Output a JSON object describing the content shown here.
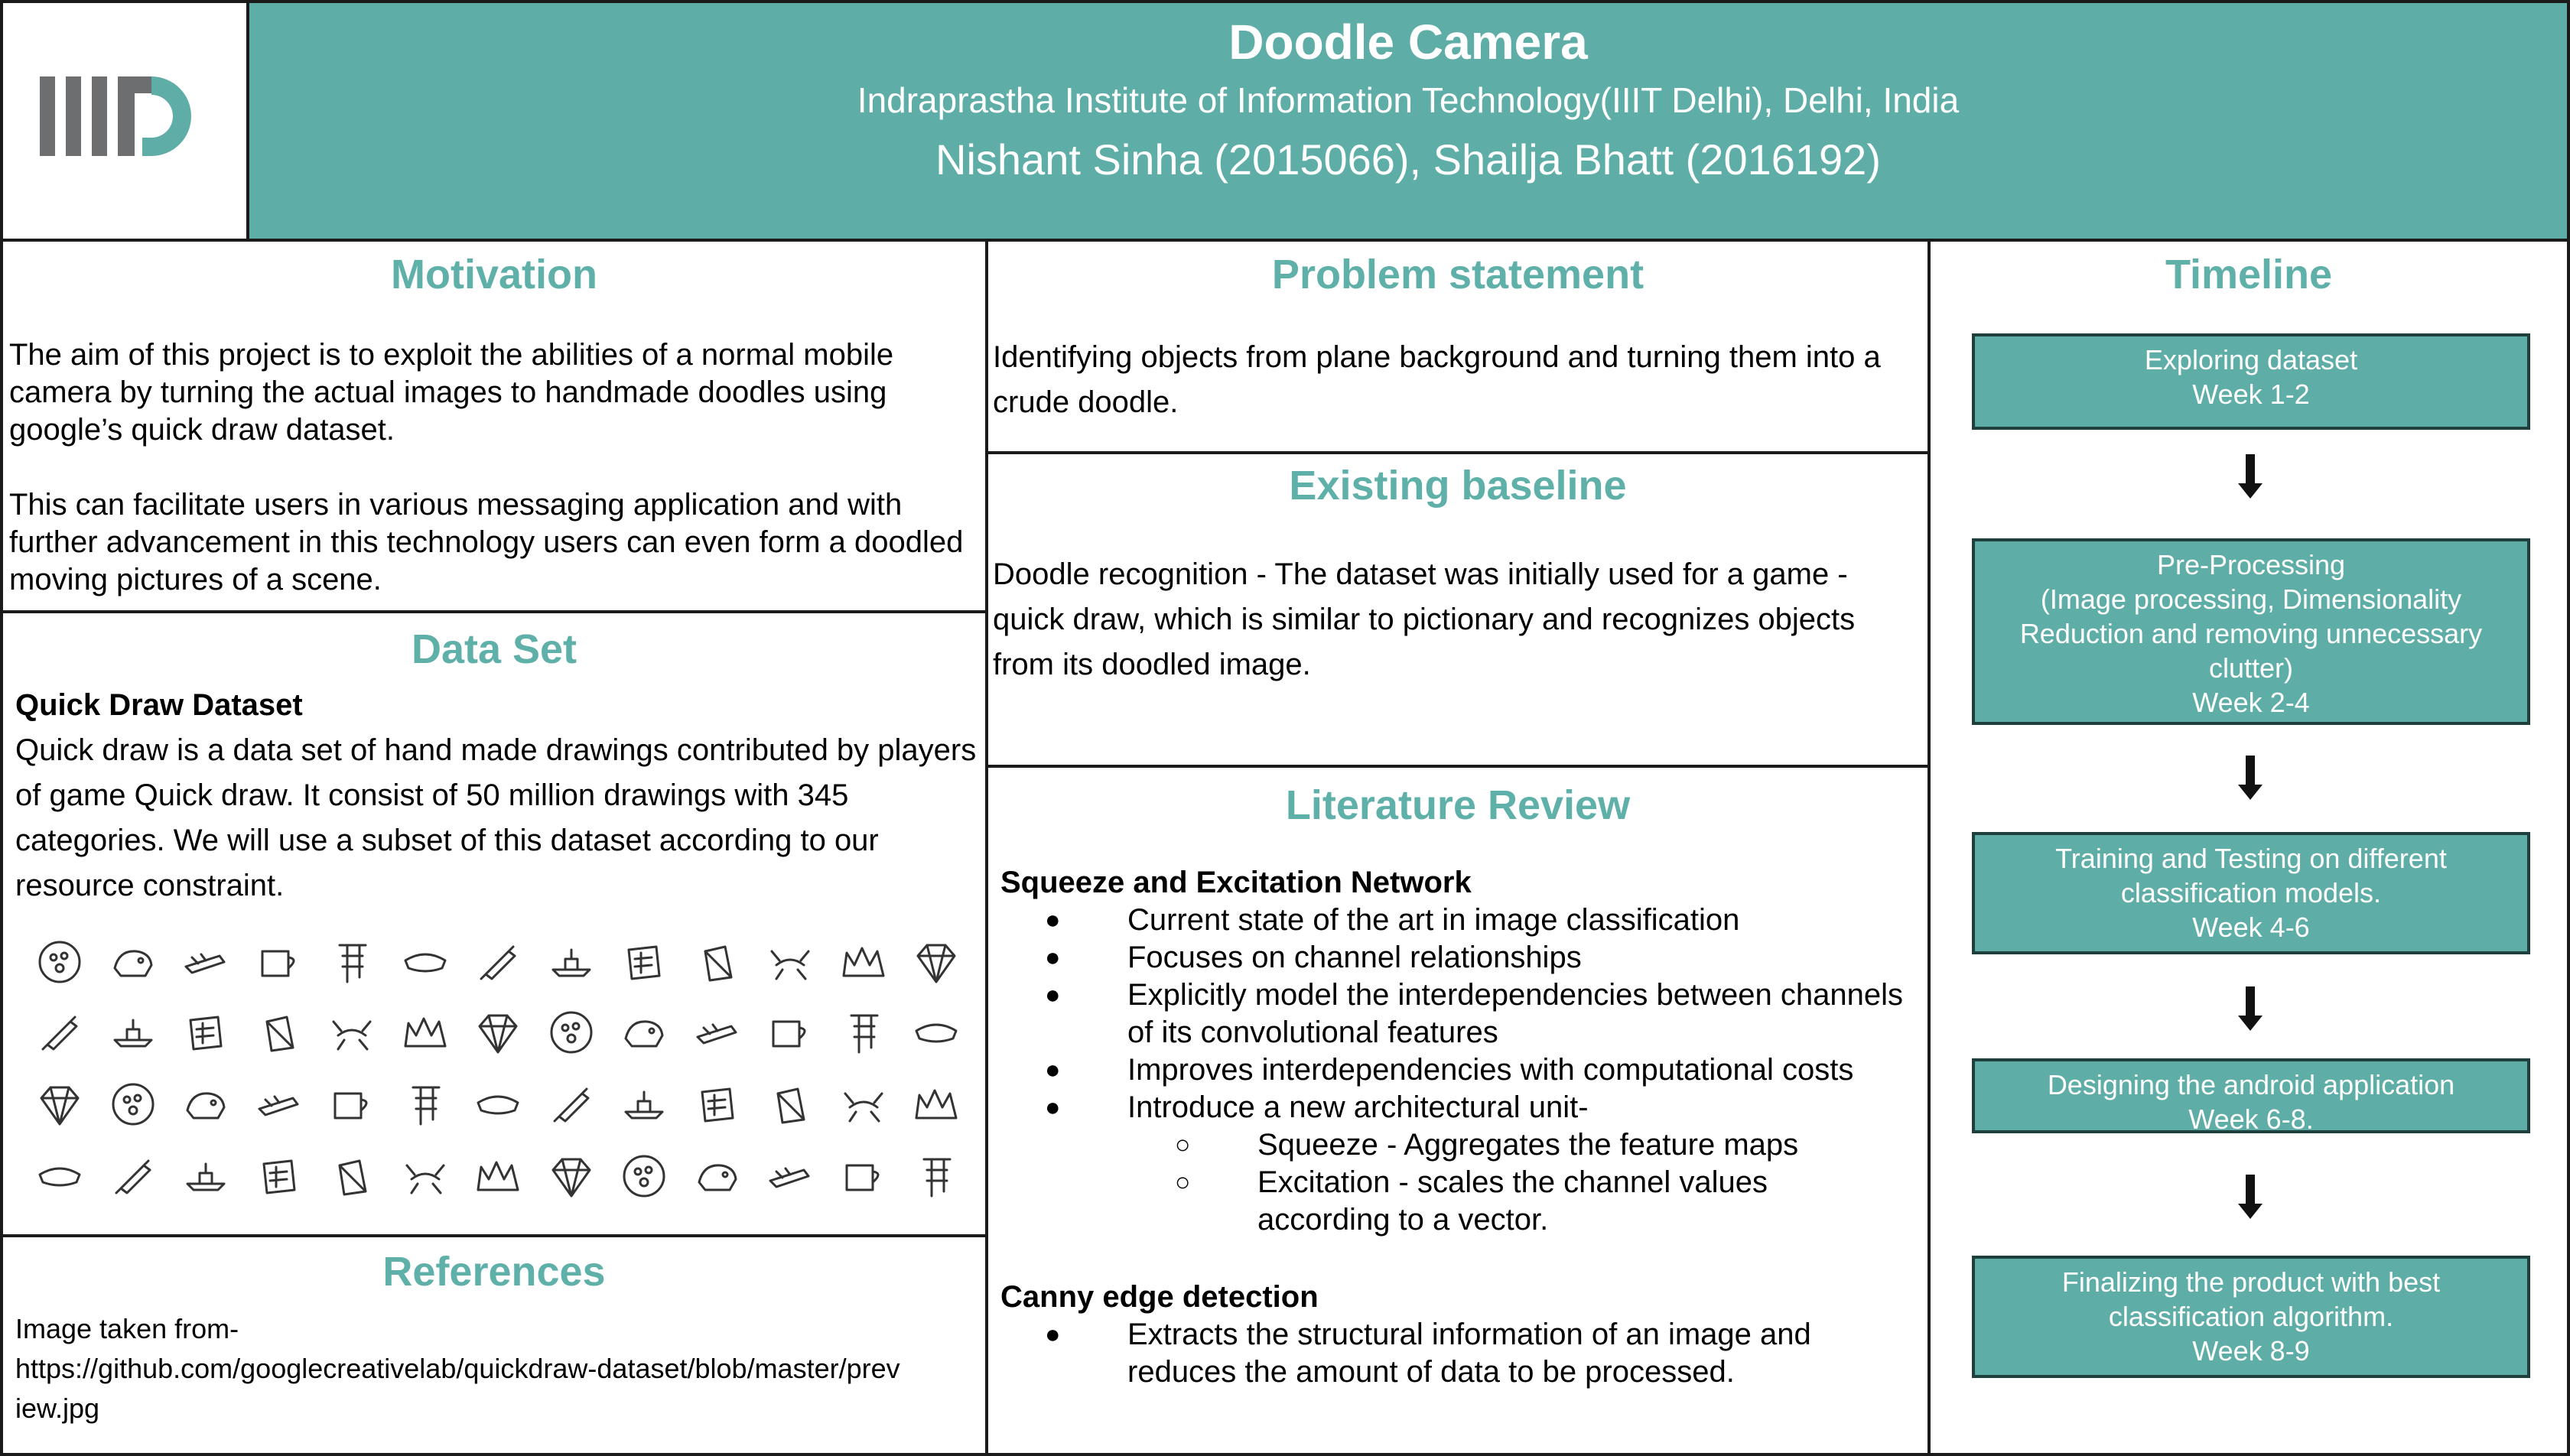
{
  "header": {
    "title": "Doodle Camera",
    "institute": "Indraprastha Institute of Information Technology(IIIT Delhi), Delhi, India",
    "authors": "Nishant Sinha (2015066), Shailja Bhatt (2016192)",
    "logo_icon": "iiitd-logo-icon",
    "accent_color": "#5eaea7"
  },
  "motivation": {
    "title": "Motivation",
    "p1": "The aim of this project is to exploit the abilities of a normal mobile camera by turning the actual images to handmade doodles using google’s quick draw dataset.",
    "p2": "This can facilitate users in various messaging application and with further advancement in this technology users can even form a doodled moving pictures of a scene."
  },
  "dataset": {
    "title": "Data Set",
    "subtitle": "Quick Draw Dataset",
    "body": "Quick draw is a data set of hand made drawings contributed by players of game Quick draw. It consist of 50 million drawings with 345 categories. We will use a subset of this dataset according to our resource constraint.",
    "doodle_icons": "doodle-sketch-icon"
  },
  "references": {
    "title": "References",
    "line1": "Image taken from-",
    "line2": "https://github.com/googlecreativelab/quickdraw-dataset/blob/master/prev",
    "line3": "iew.jpg"
  },
  "problem": {
    "title": "Problem statement",
    "body": "Identifying objects from plane background and turning them into a  crude doodle."
  },
  "baseline": {
    "title": "Existing baseline",
    "body": "Doodle recognition - The dataset was initially used for a game - quick draw, which is similar to pictionary and recognizes objects from its doodled image."
  },
  "literature": {
    "title": "Literature Review",
    "se_heading": "Squeeze and Excitation Network",
    "se_items": [
      "Current state of the art in image classification",
      "Focuses on channel relationships",
      "Explicitly model the interdependencies between channels of its convolutional features",
      "Improves interdependencies with computational costs",
      "Introduce a new architectural unit-"
    ],
    "se_sub_items": [
      "Squeeze - Aggregates the feature maps",
      "Excitation - scales the channel values according to a vector."
    ],
    "canny_heading": "Canny edge detection",
    "canny_items": [
      "Extracts the structural information of an image and reduces the amount of data to be processed."
    ]
  },
  "timeline": {
    "title": "Timeline",
    "steps": [
      {
        "l1": "Exploring dataset",
        "l2": "Week 1-2"
      },
      {
        "l1": "Pre-Processing",
        "l2": "(Image processing, Dimensionality",
        "l3": "Reduction and removing unnecessary",
        "l4": "clutter)",
        "l5": "Week 2-4"
      },
      {
        "l1": "Training and Testing on different",
        "l2": "classification models.",
        "l3": "Week 4-6"
      },
      {
        "l1": "Designing the android application",
        "l2": "Week 6-8."
      },
      {
        "l1": "Finalizing the product with best",
        "l2": "classification algorithm.",
        "l3": "Week 8-9"
      }
    ],
    "arrow_icon": "arrow-down-icon"
  }
}
